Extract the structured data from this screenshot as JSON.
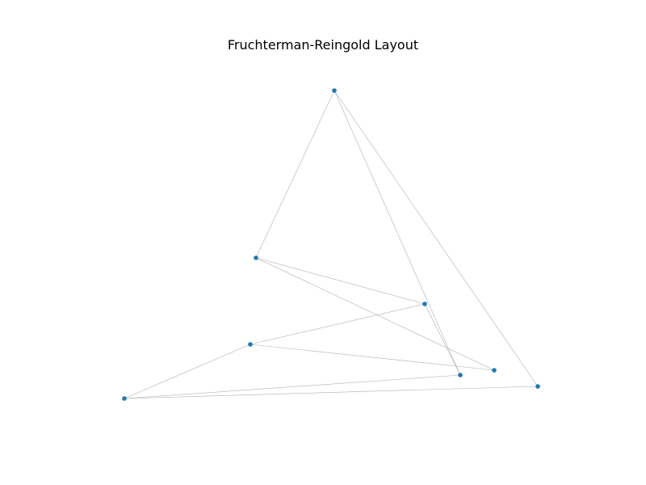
{
  "title": "Fruchterman-Reingold Layout",
  "colors": {
    "node": "#1f77b4",
    "edge": "#b0b0b0",
    "background": "#ffffff"
  },
  "graph": {
    "nodes": [
      "n0",
      "n1",
      "n2",
      "n3",
      "n4",
      "n5",
      "n6",
      "n7"
    ],
    "edges": [
      [
        "n0",
        "n1"
      ],
      [
        "n0",
        "n5"
      ],
      [
        "n0",
        "n7"
      ],
      [
        "n1",
        "n3"
      ],
      [
        "n1",
        "n6"
      ],
      [
        "n2",
        "n3"
      ],
      [
        "n2",
        "n6"
      ],
      [
        "n2",
        "n4"
      ],
      [
        "n4",
        "n5"
      ],
      [
        "n4",
        "n7"
      ],
      [
        "n3",
        "n5"
      ]
    ]
  }
}
